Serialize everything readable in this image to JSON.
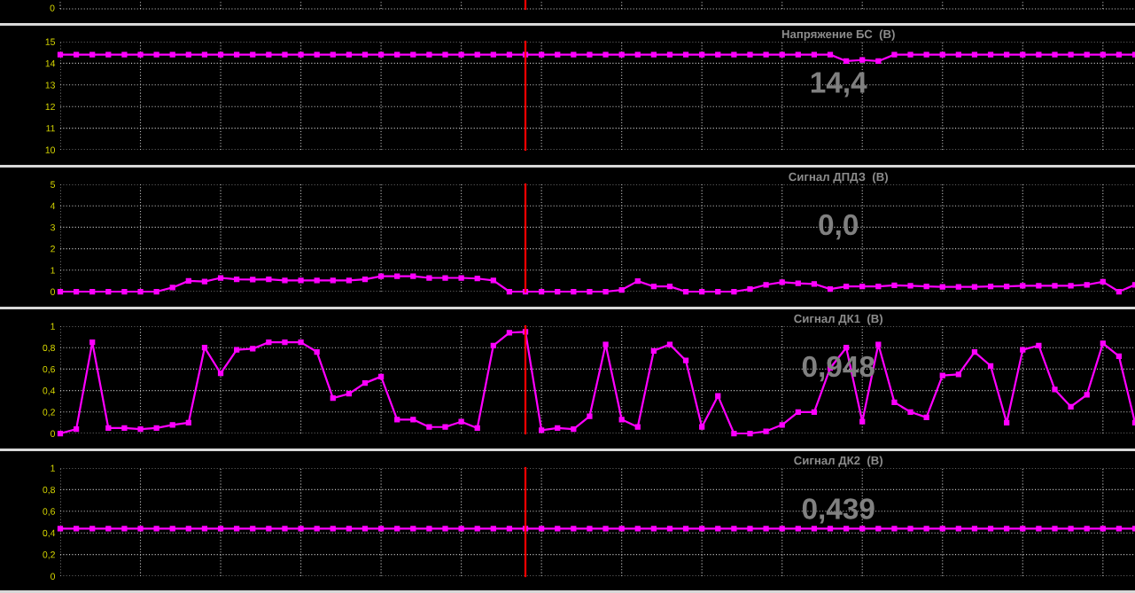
{
  "chart_data": [
    {
      "type": "other",
      "annotations": [
        "0"
      ]
    },
    {
      "type": "line",
      "title": "Напряжение БС  (В)",
      "annotations": [
        "14,4"
      ],
      "categories": [
        null,
        null,
        null,
        null,
        null,
        null,
        null,
        null,
        null,
        null,
        null,
        null,
        null,
        null,
        null,
        null,
        null,
        null,
        null,
        null,
        null,
        null,
        null,
        null,
        null,
        null,
        null,
        null,
        null,
        null,
        null,
        null,
        null,
        null,
        null,
        null,
        null,
        null,
        null,
        null,
        null,
        null,
        null,
        null,
        null,
        null,
        null,
        null,
        null,
        null,
        null,
        null,
        null,
        null,
        null,
        null,
        null,
        null,
        null,
        null,
        null,
        null,
        null,
        null,
        null,
        null,
        null,
        null
      ],
      "ylim": [
        10,
        15
      ],
      "yticks": [
        10,
        11,
        12,
        13,
        14,
        15
      ],
      "tick_labels": "y",
      "grid": true,
      "marker": "square",
      "line_style": "solid",
      "series": [
        {
          "color": "#ff00ff",
          "values": [
            14.4,
            14.4,
            14.4,
            14.4,
            14.4,
            14.4,
            14.4,
            14.4,
            14.4,
            14.4,
            14.4,
            14.4,
            14.4,
            14.4,
            14.4,
            14.4,
            14.4,
            14.4,
            14.4,
            14.4,
            14.4,
            14.4,
            14.4,
            14.4,
            14.4,
            14.4,
            14.4,
            14.4,
            14.4,
            14.4,
            14.4,
            14.4,
            14.4,
            14.4,
            14.4,
            14.4,
            14.4,
            14.4,
            14.4,
            14.4,
            14.4,
            14.4,
            14.4,
            14.4,
            14.4,
            14.4,
            14.4,
            14.4,
            14.4,
            14.1,
            14.15,
            14.1,
            14.4,
            14.4,
            14.4,
            14.4,
            14.4,
            14.4,
            14.4,
            14.4,
            14.4,
            14.4,
            14.4,
            14.4,
            14.4,
            14.4,
            14.4,
            14.4
          ]
        }
      ]
    },
    {
      "type": "line",
      "title": "Сигнал ДПДЗ  (В)",
      "annotations": [
        "0,0"
      ],
      "categories": [
        null,
        null,
        null,
        null,
        null,
        null,
        null,
        null,
        null,
        null,
        null,
        null,
        null,
        null,
        null,
        null,
        null,
        null,
        null,
        null,
        null,
        null,
        null,
        null,
        null,
        null,
        null,
        null,
        null,
        null,
        null,
        null,
        null,
        null,
        null,
        null,
        null,
        null,
        null,
        null,
        null,
        null,
        null,
        null,
        null,
        null,
        null,
        null,
        null,
        null,
        null,
        null,
        null,
        null,
        null,
        null,
        null,
        null,
        null,
        null,
        null,
        null,
        null,
        null,
        null,
        null,
        null,
        null
      ],
      "ylim": [
        0,
        5
      ],
      "yticks": [
        0,
        1,
        2,
        3,
        4,
        5
      ],
      "tick_labels": "y",
      "grid": true,
      "marker": "square",
      "line_style": "solid",
      "series": [
        {
          "color": "#ff00ff",
          "values": [
            0,
            0,
            0,
            0,
            0,
            0,
            0,
            0.19,
            0.5,
            0.47,
            0.64,
            0.57,
            0.56,
            0.57,
            0.52,
            0.52,
            0.52,
            0.52,
            0.52,
            0.57,
            0.72,
            0.72,
            0.72,
            0.64,
            0.64,
            0.64,
            0.61,
            0.52,
            0,
            0,
            0,
            0,
            0,
            0,
            0,
            0.08,
            0.49,
            0.24,
            0.24,
            0,
            0,
            0,
            0,
            0.12,
            0.32,
            0.44,
            0.39,
            0.36,
            0.12,
            0.24,
            0.24,
            0.24,
            0.29,
            0.27,
            0.24,
            0.22,
            0.22,
            0.22,
            0.24,
            0.24,
            0.27,
            0.27,
            0.27,
            0.27,
            0.32,
            0.46,
            0,
            0.32
          ]
        }
      ]
    },
    {
      "type": "line",
      "title": "Сигнал ДК1  (В)",
      "annotations": [
        "0,948"
      ],
      "categories": [
        null,
        null,
        null,
        null,
        null,
        null,
        null,
        null,
        null,
        null,
        null,
        null,
        null,
        null,
        null,
        null,
        null,
        null,
        null,
        null,
        null,
        null,
        null,
        null,
        null,
        null,
        null,
        null,
        null,
        null,
        null,
        null,
        null,
        null,
        null,
        null,
        null,
        null,
        null,
        null,
        null,
        null,
        null,
        null,
        null,
        null,
        null,
        null,
        null,
        null,
        null,
        null,
        null,
        null,
        null,
        null,
        null,
        null,
        null,
        null,
        null,
        null,
        null,
        null,
        null,
        null,
        null,
        null
      ],
      "ylim": [
        0,
        1
      ],
      "yticks": [
        0,
        {
          "value": 0.2,
          "label": "0,2"
        },
        {
          "value": 0.4,
          "label": "0,4"
        },
        {
          "value": 0.6,
          "label": "0,6"
        },
        {
          "value": 0.8,
          "label": "0,8"
        },
        1
      ],
      "tick_labels": "y",
      "grid": true,
      "marker": "square",
      "line_style": "solid",
      "series": [
        {
          "color": "#ff00ff",
          "values": [
            0,
            0.04,
            0.85,
            0.05,
            0.05,
            0.04,
            0.05,
            0.08,
            0.1,
            0.8,
            0.56,
            0.78,
            0.79,
            0.85,
            0.85,
            0.85,
            0.76,
            0.33,
            0.37,
            0.47,
            0.53,
            0.13,
            0.13,
            0.06,
            0.06,
            0.11,
            0.05,
            0.82,
            0.94,
            0.948,
            0.03,
            0.05,
            0.04,
            0.16,
            0.83,
            0.13,
            0.06,
            0.77,
            0.83,
            0.68,
            0.06,
            0.35,
            0,
            0,
            0.02,
            0.08,
            0.2,
            0.2,
            0.61,
            0.8,
            0.11,
            0.83,
            0.29,
            0.2,
            0.15,
            0.54,
            0.55,
            0.76,
            0.63,
            0.1,
            0.78,
            0.82,
            0.41,
            0.25,
            0.36,
            0.84,
            0.72,
            0.1
          ]
        }
      ]
    },
    {
      "type": "line",
      "title": "Сигнал ДК2  (В)",
      "annotations": [
        "0,439"
      ],
      "categories": [
        null,
        null,
        null,
        null,
        null,
        null,
        null,
        null,
        null,
        null,
        null,
        null,
        null,
        null,
        null,
        null,
        null,
        null,
        null,
        null,
        null,
        null,
        null,
        null,
        null,
        null,
        null,
        null,
        null,
        null,
        null,
        null,
        null,
        null,
        null,
        null,
        null,
        null,
        null,
        null,
        null,
        null,
        null,
        null,
        null,
        null,
        null,
        null,
        null,
        null,
        null,
        null,
        null,
        null,
        null,
        null,
        null,
        null,
        null,
        null,
        null,
        null,
        null,
        null,
        null,
        null,
        null,
        null
      ],
      "ylim": [
        0,
        1
      ],
      "yticks": [
        0,
        {
          "value": 0.2,
          "label": "0,2"
        },
        {
          "value": 0.4,
          "label": "0,4"
        },
        {
          "value": 0.6,
          "label": "0,6"
        },
        {
          "value": 0.8,
          "label": "0,8"
        },
        1
      ],
      "tick_labels": "y",
      "grid": true,
      "marker": "square",
      "line_style": "solid",
      "series": [
        {
          "color": "#ff00ff",
          "values": [
            0.439,
            0.439,
            0.439,
            0.439,
            0.439,
            0.439,
            0.439,
            0.439,
            0.439,
            0.439,
            0.439,
            0.439,
            0.439,
            0.439,
            0.439,
            0.439,
            0.439,
            0.439,
            0.439,
            0.439,
            0.439,
            0.439,
            0.439,
            0.439,
            0.439,
            0.439,
            0.439,
            0.439,
            0.439,
            0.439,
            0.439,
            0.439,
            0.439,
            0.439,
            0.439,
            0.439,
            0.439,
            0.439,
            0.439,
            0.439,
            0.439,
            0.439,
            0.439,
            0.439,
            0.439,
            0.439,
            0.439,
            0.439,
            0.439,
            0.439,
            0.439,
            0.439,
            0.439,
            0.439,
            0.439,
            0.439,
            0.439,
            0.439,
            0.439,
            0.439,
            0.439,
            0.439,
            0.439,
            0.439,
            0.439,
            0.439,
            0.439,
            0.439
          ]
        }
      ]
    }
  ]
}
